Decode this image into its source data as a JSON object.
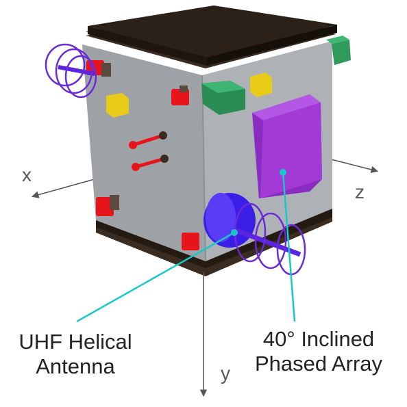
{
  "axes": {
    "x": "x",
    "y": "y",
    "z": "z"
  },
  "callouts": {
    "uhf": {
      "line1": "UHF Helical",
      "line2": "Antenna"
    },
    "phased": {
      "line1": "40° Inclined",
      "line2": "Phased Array"
    }
  },
  "colors": {
    "body_front": "#9ea2a7",
    "body_side": "#a9adb1",
    "top_plate": "#2b2118",
    "antenna_blue": "#3a1ee8",
    "coil_purple": "#6a2bd6",
    "phased_array": "#a23ad6",
    "connector_red": "#e8141c",
    "sensor_yellow": "#e8cc18",
    "module_green": "#2e9a5c",
    "callout_cyan": "#18c8c8",
    "axis_gray": "#555555"
  }
}
